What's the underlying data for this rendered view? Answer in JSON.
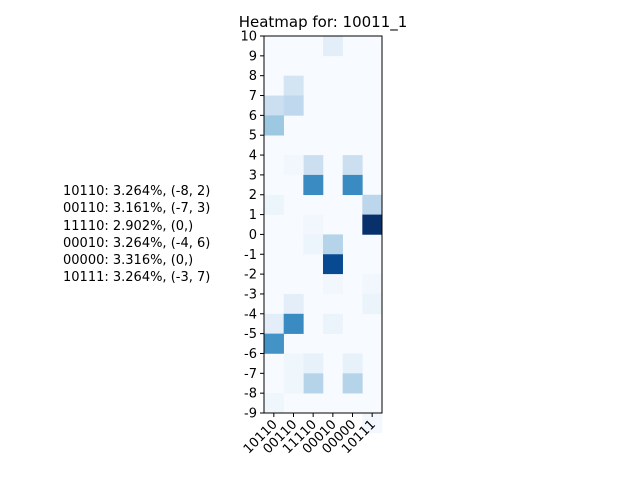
{
  "chart_data": {
    "type": "heatmap",
    "title": "Heatmap for: 10011_1",
    "xlabel": "",
    "ylabel": "",
    "x_categories": [
      "10110",
      "00110",
      "11110",
      "00010",
      "00000",
      "10111"
    ],
    "y_ticks": [
      "10",
      "9",
      "8",
      "7",
      "6",
      "5",
      "4",
      "3",
      "2",
      "1",
      "0",
      "-1",
      "-2",
      "-3",
      "-4",
      "-5",
      "-6",
      "-7",
      "-8",
      "-9"
    ],
    "y_range": [
      -9,
      10
    ],
    "colormap": "Blues",
    "grid": false,
    "cells": [
      {
        "x": "00010",
        "y": 9.5,
        "value": 0.1
      },
      {
        "x": "00110",
        "y": 7.5,
        "value": 0.18
      },
      {
        "x": "10110",
        "y": 6.5,
        "value": 0.22
      },
      {
        "x": "00110",
        "y": 6.5,
        "value": 0.27
      },
      {
        "x": "10110",
        "y": 5.5,
        "value": 0.38
      },
      {
        "x": "11110",
        "y": 3.5,
        "value": 0.22
      },
      {
        "x": "00000",
        "y": 3.5,
        "value": 0.22
      },
      {
        "x": "00110",
        "y": 3.5,
        "value": 0.03
      },
      {
        "x": "11110",
        "y": 2.5,
        "value": 0.65
      },
      {
        "x": "00000",
        "y": 2.5,
        "value": 0.65
      },
      {
        "x": "10110",
        "y": 1.5,
        "value": 0.05
      },
      {
        "x": "10111",
        "y": 1.5,
        "value": 0.28
      },
      {
        "x": "11110",
        "y": 0.5,
        "value": 0.03
      },
      {
        "x": "10111",
        "y": 0.5,
        "value": 1.0
      },
      {
        "x": "11110",
        "y": -0.5,
        "value": 0.05
      },
      {
        "x": "00010",
        "y": -0.5,
        "value": 0.3
      },
      {
        "x": "00010",
        "y": -1.5,
        "value": 0.9
      },
      {
        "x": "10111",
        "y": -2.5,
        "value": 0.03
      },
      {
        "x": "00010",
        "y": -2.5,
        "value": 0.03
      },
      {
        "x": "10111",
        "y": -3.5,
        "value": 0.06
      },
      {
        "x": "00110",
        "y": -3.5,
        "value": 0.1
      },
      {
        "x": "10110",
        "y": -4.5,
        "value": 0.1
      },
      {
        "x": "00110",
        "y": -4.5,
        "value": 0.65
      },
      {
        "x": "00010",
        "y": -4.5,
        "value": 0.06
      },
      {
        "x": "10110",
        "y": -5.5,
        "value": 0.62
      },
      {
        "x": "11110",
        "y": -6.5,
        "value": 0.08
      },
      {
        "x": "00000",
        "y": -6.5,
        "value": 0.08
      },
      {
        "x": "00110",
        "y": -6.5,
        "value": 0.04
      },
      {
        "x": "11110",
        "y": -7.5,
        "value": 0.3
      },
      {
        "x": "00000",
        "y": -7.5,
        "value": 0.3
      },
      {
        "x": "00110",
        "y": -7.5,
        "value": 0.04
      },
      {
        "x": "10110",
        "y": -8.5,
        "value": 0.04
      },
      {
        "x": "10111",
        "y": -9.5,
        "value": 0.02
      }
    ],
    "legend_entries": [
      "10110: 3.264%, (-8, 2)",
      "00110: 3.161%, (-7, 3)",
      "11110: 2.902%, (0,)",
      "00010: 3.264%, (-4, 6)",
      "00000: 3.316%, (0,)",
      "10111: 3.264%, (-3, 7)"
    ]
  }
}
